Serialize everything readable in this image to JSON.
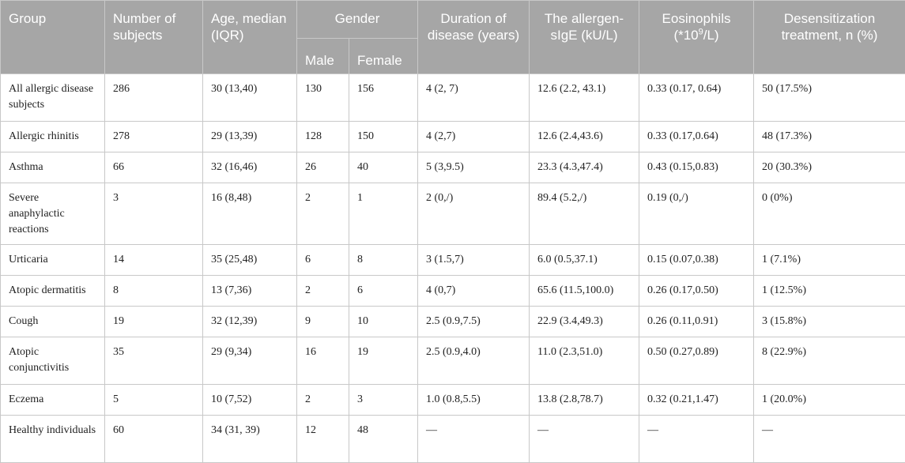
{
  "header": {
    "group": "Group",
    "number_of_subjects": "Number of subjects",
    "age": "Age, median (IQR)",
    "gender": "Gender",
    "male": "Male",
    "female": "Female",
    "duration": "Duration of disease (years)",
    "sige": "The allergen-sIgE (kU/L)",
    "eos_prefix": "Eosinophils (*10",
    "eos_sup": "9",
    "eos_suffix": "/L)",
    "desens": "Desensitization treatment, n (%)"
  },
  "rows": [
    {
      "group": "All allergic disease subjects",
      "n": "286",
      "age": "30 (13,40)",
      "male": "130",
      "female": "156",
      "duration": "4 (2, 7)",
      "sige": "12.6 (2.2, 43.1)",
      "eos": "0.33 (0.17, 0.64)",
      "desens": "50 (17.5%)"
    },
    {
      "group": "Allergic rhinitis",
      "n": "278",
      "age": "29 (13,39)",
      "male": "128",
      "female": "150",
      "duration": "4 (2,7)",
      "sige": "12.6 (2.4,43.6)",
      "eos": "0.33 (0.17,0.64)",
      "desens": "48 (17.3%)"
    },
    {
      "group": "Asthma",
      "n": "66",
      "age": "32 (16,46)",
      "male": "26",
      "female": "40",
      "duration": "5 (3,9.5)",
      "sige": "23.3 (4.3,47.4)",
      "eos": "0.43 (0.15,0.83)",
      "desens": "20 (30.3%)"
    },
    {
      "group": "Severe anaphylactic reactions",
      "n": "3",
      "age": "16 (8,48)",
      "male": "2",
      "female": "1",
      "duration": "2 (0,/)",
      "sige": "89.4 (5.2,/)",
      "eos": "0.19 (0,/)",
      "desens": "0 (0%)"
    },
    {
      "group": "Urticaria",
      "n": "14",
      "age": "35 (25,48)",
      "male": "6",
      "female": "8",
      "duration": "3 (1.5,7)",
      "sige": "6.0 (0.5,37.1)",
      "eos": "0.15 (0.07,0.38)",
      "desens": "1 (7.1%)"
    },
    {
      "group": "Atopic dermatitis",
      "n": "8",
      "age": "13 (7,36)",
      "male": "2",
      "female": "6",
      "duration": "4 (0,7)",
      "sige": "65.6 (11.5,100.0)",
      "eos": "0.26 (0.17,0.50)",
      "desens": "1 (12.5%)"
    },
    {
      "group": "Cough",
      "n": "19",
      "age": "32 (12,39)",
      "male": "9",
      "female": "10",
      "duration": "2.5 (0.9,7.5)",
      "sige": "22.9 (3.4,49.3)",
      "eos": "0.26 (0.11,0.91)",
      "desens": "3 (15.8%)"
    },
    {
      "group": "Atopic conjunctivitis",
      "n": "35",
      "age": "29 (9,34)",
      "male": "16",
      "female": "19",
      "duration": "2.5 (0.9,4.0)",
      "sige": "11.0 (2.3,51.0)",
      "eos": "0.50 (0.27,0.89)",
      "desens": "8 (22.9%)"
    },
    {
      "group": "Eczema",
      "n": "5",
      "age": "10 (7,52)",
      "male": "2",
      "female": "3",
      "duration": "1.0 (0.8,5.5)",
      "sige": "13.8 (2.8,78.7)",
      "eos": "0.32 (0.21,1.47)",
      "desens": "1 (20.0%)"
    },
    {
      "group": "Healthy individuals",
      "n": "60",
      "age": "34 (31, 39)",
      "male": "12",
      "female": "48",
      "duration": "—",
      "sige": "—",
      "eos": "—",
      "desens": "—"
    }
  ]
}
